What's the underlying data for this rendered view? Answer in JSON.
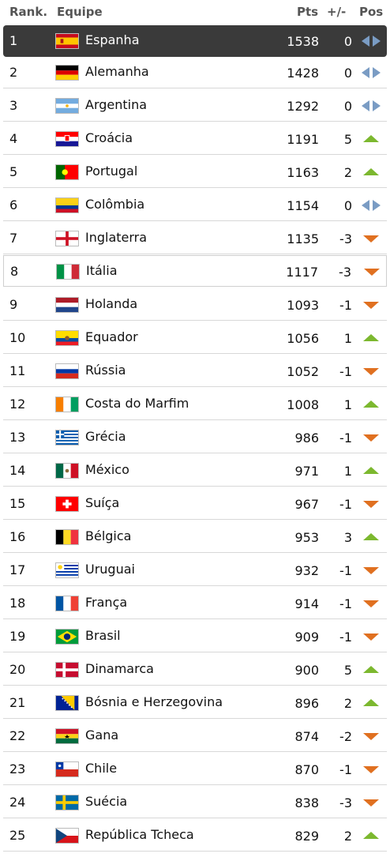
{
  "header": {
    "rank": "Rank.",
    "team": "Equipe",
    "pts": "Pts",
    "diff": "+/-",
    "pos": "Pos"
  },
  "rows": [
    {
      "rank": "1",
      "team": "Espanha",
      "pts": "1538",
      "diff": "0",
      "trend": "same",
      "flag": "spain-flag-icon"
    },
    {
      "rank": "2",
      "team": "Alemanha",
      "pts": "1428",
      "diff": "0",
      "trend": "same",
      "flag": "germany-flag-icon"
    },
    {
      "rank": "3",
      "team": "Argentina",
      "pts": "1292",
      "diff": "0",
      "trend": "same",
      "flag": "argentina-flag-icon"
    },
    {
      "rank": "4",
      "team": "Croácia",
      "pts": "1191",
      "diff": "5",
      "trend": "up",
      "flag": "croatia-flag-icon"
    },
    {
      "rank": "5",
      "team": "Portugal",
      "pts": "1163",
      "diff": "2",
      "trend": "up",
      "flag": "portugal-flag-icon"
    },
    {
      "rank": "6",
      "team": "Colômbia",
      "pts": "1154",
      "diff": "0",
      "trend": "same",
      "flag": "colombia-flag-icon"
    },
    {
      "rank": "7",
      "team": "Inglaterra",
      "pts": "1135",
      "diff": "-3",
      "trend": "down",
      "flag": "england-flag-icon"
    },
    {
      "rank": "8",
      "team": "Itália",
      "pts": "1117",
      "diff": "-3",
      "trend": "down",
      "flag": "italy-flag-icon"
    },
    {
      "rank": "9",
      "team": "Holanda",
      "pts": "1093",
      "diff": "-1",
      "trend": "down",
      "flag": "netherlands-flag-icon"
    },
    {
      "rank": "10",
      "team": "Equador",
      "pts": "1056",
      "diff": "1",
      "trend": "up",
      "flag": "ecuador-flag-icon"
    },
    {
      "rank": "11",
      "team": "Rússia",
      "pts": "1052",
      "diff": "-1",
      "trend": "down",
      "flag": "russia-flag-icon"
    },
    {
      "rank": "12",
      "team": "Costa do Marfim",
      "pts": "1008",
      "diff": "1",
      "trend": "up",
      "flag": "ivory-coast-flag-icon"
    },
    {
      "rank": "13",
      "team": "Grécia",
      "pts": "986",
      "diff": "-1",
      "trend": "down",
      "flag": "greece-flag-icon"
    },
    {
      "rank": "14",
      "team": "México",
      "pts": "971",
      "diff": "1",
      "trend": "up",
      "flag": "mexico-flag-icon"
    },
    {
      "rank": "15",
      "team": "Suíça",
      "pts": "967",
      "diff": "-1",
      "trend": "down",
      "flag": "switzerland-flag-icon"
    },
    {
      "rank": "16",
      "team": "Bélgica",
      "pts": "953",
      "diff": "3",
      "trend": "up",
      "flag": "belgium-flag-icon"
    },
    {
      "rank": "17",
      "team": "Uruguai",
      "pts": "932",
      "diff": "-1",
      "trend": "down",
      "flag": "uruguay-flag-icon"
    },
    {
      "rank": "18",
      "team": "França",
      "pts": "914",
      "diff": "-1",
      "trend": "down",
      "flag": "france-flag-icon"
    },
    {
      "rank": "19",
      "team": "Brasil",
      "pts": "909",
      "diff": "-1",
      "trend": "down",
      "flag": "brazil-flag-icon"
    },
    {
      "rank": "20",
      "team": "Dinamarca",
      "pts": "900",
      "diff": "5",
      "trend": "up",
      "flag": "denmark-flag-icon"
    },
    {
      "rank": "21",
      "team": "Bósnia e Herzegovina",
      "pts": "896",
      "diff": "2",
      "trend": "up",
      "flag": "bosnia-flag-icon"
    },
    {
      "rank": "22",
      "team": "Gana",
      "pts": "874",
      "diff": "-2",
      "trend": "down",
      "flag": "ghana-flag-icon"
    },
    {
      "rank": "23",
      "team": "Chile",
      "pts": "870",
      "diff": "-1",
      "trend": "down",
      "flag": "chile-flag-icon"
    },
    {
      "rank": "24",
      "team": "Suécia",
      "pts": "838",
      "diff": "-3",
      "trend": "down",
      "flag": "sweden-flag-icon"
    },
    {
      "rank": "25",
      "team": "República Tcheca",
      "pts": "829",
      "diff": "2",
      "trend": "up",
      "flag": "czech-flag-icon"
    }
  ],
  "colors": {
    "up": "#7cb82f",
    "down": "#e07020",
    "same": "#7a9cc4",
    "first_row_bg": "#3a3a3a"
  }
}
